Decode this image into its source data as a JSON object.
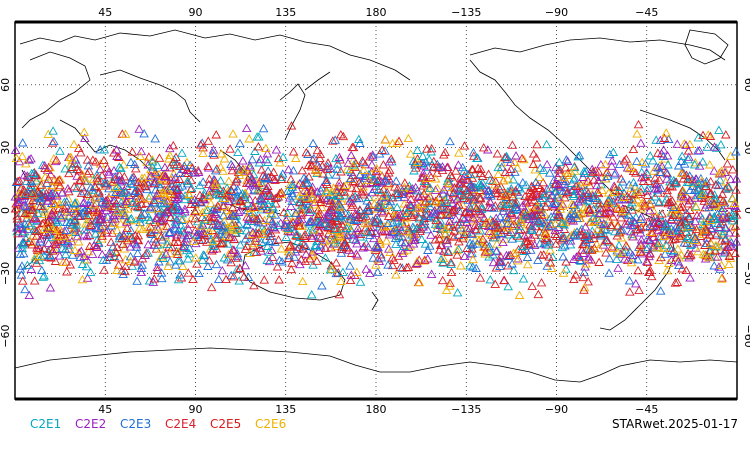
{
  "chart_data": {
    "type": "scatter",
    "title": "",
    "projection": "cylindrical equidistant",
    "center_longitude": 180,
    "lon_range": [
      0,
      360
    ],
    "lat_range": [
      -90,
      90
    ],
    "grid": "dotted",
    "x_ticks": [
      "45",
      "90",
      "135",
      "180",
      "−135",
      "−90",
      "−45"
    ],
    "y_ticks": [
      "60",
      "30",
      "0",
      "−30",
      "−60"
    ],
    "marker": "open-triangle",
    "obs_lat_range": [
      -45,
      45
    ],
    "series": [
      {
        "name": "C2E1",
        "color": "#00a8c0"
      },
      {
        "name": "C2E2",
        "color": "#9b1fc0"
      },
      {
        "name": "C2E3",
        "color": "#1f6fd8"
      },
      {
        "name": "C2E4",
        "color": "#d8202a"
      },
      {
        "name": "C2E5",
        "color": "#d81a1a"
      },
      {
        "name": "C2E6",
        "color": "#f0b000"
      }
    ]
  },
  "footer": {
    "label": "STARwet.2025-01-17"
  }
}
